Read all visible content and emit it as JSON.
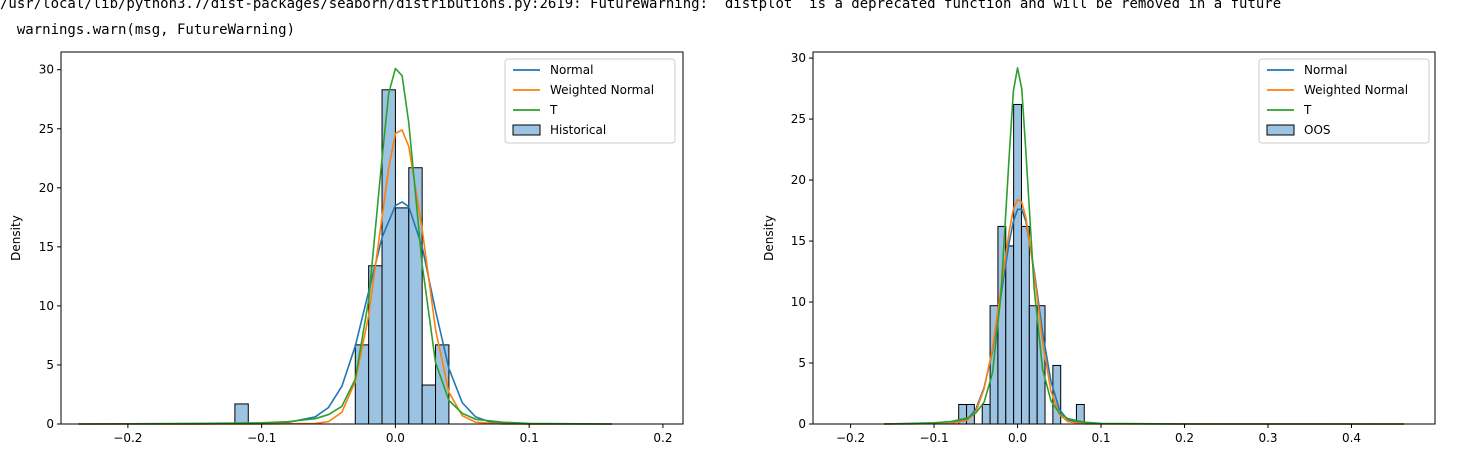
{
  "console": {
    "warning_line1": "/usr/local/lib/python3.7/dist-packages/seaborn/distributions.py:2619: FutureWarning: `distplot` is a deprecated function and will be removed in a future",
    "warning_line2": "  warnings.warn(msg, FutureWarning)"
  },
  "colors": {
    "normal": "#1f77b4",
    "weighted_normal": "#ff7f0e",
    "t": "#2ca02c",
    "hist_fill": "#9dc3e2",
    "hist_edge": "#000000"
  },
  "chart_data": [
    {
      "type": "bar",
      "ylabel": "Density",
      "xlim": [
        -0.25,
        0.215
      ],
      "ylim": [
        0,
        31.5
      ],
      "xticks": [
        -0.2,
        -0.1,
        0.0,
        0.1,
        0.2
      ],
      "xtick_labels": [
        "−0.2",
        "−0.1",
        "0.0",
        "0.1",
        "0.2"
      ],
      "yticks": [
        0,
        5,
        10,
        15,
        20,
        25,
        30
      ],
      "ytick_labels": [
        "0",
        "5",
        "10",
        "15",
        "20",
        "25",
        "30"
      ],
      "legend_position": "top-right",
      "histogram": {
        "name": "Historical",
        "bin_width": 0.01,
        "bins": [
          {
            "x0": -0.12,
            "value": 1.7
          },
          {
            "x0": -0.03,
            "value": 6.7
          },
          {
            "x0": -0.02,
            "value": 13.4
          },
          {
            "x0": -0.01,
            "value": 28.3
          },
          {
            "x0": 0.0,
            "value": 18.3
          },
          {
            "x0": 0.01,
            "value": 21.7
          },
          {
            "x0": 0.02,
            "value": 3.3
          },
          {
            "x0": 0.03,
            "value": 6.7
          }
        ]
      },
      "series": [
        {
          "name": "Normal",
          "color": "#1f77b4",
          "x": [
            -0.237,
            -0.2,
            -0.15,
            -0.1,
            -0.08,
            -0.06,
            -0.05,
            -0.04,
            -0.03,
            -0.02,
            -0.01,
            0.0,
            0.005,
            0.01,
            0.02,
            0.03,
            0.04,
            0.05,
            0.06,
            0.07,
            0.08,
            0.1,
            0.12,
            0.162
          ],
          "y": [
            0,
            0,
            0,
            0.05,
            0.15,
            0.6,
            1.4,
            3.2,
            6.6,
            11.2,
            15.8,
            18.5,
            18.8,
            18.4,
            15.0,
            9.6,
            4.7,
            1.8,
            0.6,
            0.2,
            0.06,
            0,
            0,
            0
          ]
        },
        {
          "name": "Weighted Normal",
          "color": "#ff7f0e",
          "x": [
            -0.237,
            -0.1,
            -0.06,
            -0.05,
            -0.04,
            -0.03,
            -0.02,
            -0.01,
            -0.005,
            0.0,
            0.005,
            0.01,
            0.02,
            0.03,
            0.04,
            0.05,
            0.06,
            0.08,
            0.162
          ],
          "y": [
            0,
            0,
            0.05,
            0.2,
            1.0,
            3.6,
            9.2,
            17.5,
            21.7,
            24.6,
            24.9,
            23.5,
            16.5,
            8.0,
            2.7,
            0.7,
            0.15,
            0,
            0
          ]
        },
        {
          "name": "T",
          "color": "#2ca02c",
          "x": [
            -0.237,
            -0.15,
            -0.1,
            -0.08,
            -0.06,
            -0.05,
            -0.04,
            -0.03,
            -0.02,
            -0.01,
            -0.005,
            0.0,
            0.005,
            0.01,
            0.02,
            0.03,
            0.04,
            0.05,
            0.06,
            0.08,
            0.1,
            0.162
          ],
          "y": [
            0,
            0.05,
            0.1,
            0.2,
            0.45,
            0.8,
            1.5,
            3.8,
            10.5,
            22.5,
            28.0,
            30.1,
            29.5,
            25.5,
            13.5,
            5.2,
            2.0,
            0.9,
            0.4,
            0.15,
            0.05,
            0
          ]
        }
      ]
    },
    {
      "type": "bar",
      "ylabel": "Density",
      "xlim": [
        -0.245,
        0.5
      ],
      "ylim": [
        0,
        30.5
      ],
      "xticks": [
        -0.2,
        -0.1,
        0.0,
        0.1,
        0.2,
        0.3,
        0.4
      ],
      "xtick_labels": [
        "−0.2",
        "−0.1",
        "0.0",
        "0.1",
        "0.2",
        "0.3",
        "0.4"
      ],
      "yticks": [
        0,
        5,
        10,
        15,
        20,
        25,
        30
      ],
      "ytick_labels": [
        "0",
        "5",
        "10",
        "15",
        "20",
        "25",
        "30"
      ],
      "legend_position": "top-right",
      "histogram": {
        "name": "OOS",
        "bin_width": 0.0094,
        "bins": [
          {
            "x0": -0.0705,
            "value": 1.6
          },
          {
            "x0": -0.0611,
            "value": 1.6
          },
          {
            "x0": -0.0423,
            "value": 1.6
          },
          {
            "x0": -0.0329,
            "value": 9.7
          },
          {
            "x0": -0.0235,
            "value": 16.2
          },
          {
            "x0": -0.0141,
            "value": 14.6
          },
          {
            "x0": -0.0047,
            "value": 26.2
          },
          {
            "x0": 0.0047,
            "value": 16.2
          },
          {
            "x0": 0.0141,
            "value": 9.7
          },
          {
            "x0": 0.0235,
            "value": 9.7
          },
          {
            "x0": 0.0423,
            "value": 4.8
          },
          {
            "x0": 0.0705,
            "value": 1.6
          }
        ]
      },
      "series": [
        {
          "name": "Normal",
          "color": "#1f77b4",
          "x": [
            -0.16,
            -0.08,
            -0.06,
            -0.05,
            -0.04,
            -0.03,
            -0.02,
            -0.01,
            -0.005,
            0.0,
            0.005,
            0.01,
            0.02,
            0.03,
            0.04,
            0.05,
            0.06,
            0.08,
            0.463
          ],
          "y": [
            0,
            0.05,
            0.4,
            1.2,
            3.0,
            6.0,
            10.5,
            14.9,
            16.6,
            17.6,
            17.6,
            16.6,
            12.5,
            7.5,
            3.5,
            1.2,
            0.35,
            0.02,
            0
          ]
        },
        {
          "name": "Weighted Normal",
          "color": "#ff7f0e",
          "x": [
            -0.16,
            -0.08,
            -0.06,
            -0.05,
            -0.04,
            -0.03,
            -0.02,
            -0.01,
            -0.005,
            0.0,
            0.005,
            0.01,
            0.02,
            0.03,
            0.04,
            0.05,
            0.06,
            0.08,
            0.463
          ],
          "y": [
            0,
            0.03,
            0.3,
            1.0,
            2.9,
            6.2,
            11.0,
            15.8,
            17.6,
            18.4,
            18.2,
            16.9,
            12.3,
            6.7,
            2.7,
            0.8,
            0.2,
            0.01,
            0
          ]
        },
        {
          "name": "T",
          "color": "#2ca02c",
          "x": [
            -0.16,
            -0.1,
            -0.08,
            -0.06,
            -0.05,
            -0.04,
            -0.03,
            -0.02,
            -0.01,
            -0.005,
            0.0,
            0.005,
            0.01,
            0.02,
            0.03,
            0.04,
            0.05,
            0.06,
            0.08,
            0.1,
            0.2,
            0.463
          ],
          "y": [
            0,
            0.1,
            0.2,
            0.5,
            0.9,
            1.8,
            4.2,
            10.5,
            22.0,
            27.3,
            29.2,
            27.5,
            22.3,
            11.0,
            4.5,
            1.9,
            0.9,
            0.45,
            0.15,
            0.05,
            0,
            0
          ]
        }
      ]
    }
  ]
}
